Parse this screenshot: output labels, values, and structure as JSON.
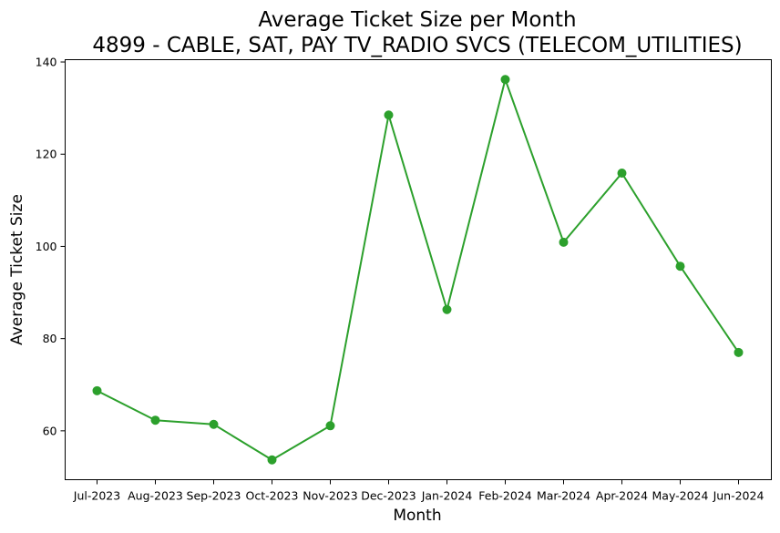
{
  "chart_data": {
    "type": "line",
    "title": [
      "Average Ticket Size per Month",
      "4899 - CABLE, SAT, PAY TV_RADIO SVCS (TELECOM_UTILITIES)"
    ],
    "xlabel": "Month",
    "ylabel": "Average Ticket Size",
    "categories": [
      "Jul-2023",
      "Aug-2023",
      "Sep-2023",
      "Oct-2023",
      "Nov-2023",
      "Dec-2023",
      "Jan-2024",
      "Feb-2024",
      "Mar-2024",
      "Apr-2024",
      "May-2024",
      "Jun-2024"
    ],
    "series": [
      {
        "values": [
          68.7,
          62.3,
          61.4,
          53.7,
          61.1,
          128.5,
          86.3,
          136.2,
          100.9,
          115.9,
          95.7,
          77.0
        ]
      }
    ],
    "ylim": [
      49.4,
      140.5
    ],
    "yticks": [
      60,
      80,
      100,
      120,
      140
    ],
    "line_color": "#2ca02c",
    "marker": "circle",
    "grid": false,
    "legend": "none"
  }
}
